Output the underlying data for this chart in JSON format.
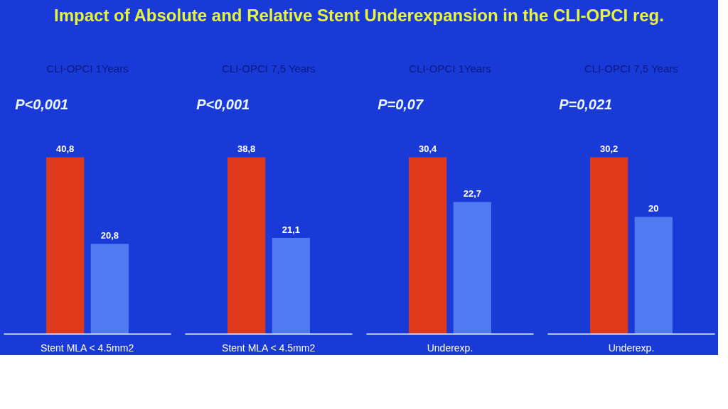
{
  "chart_data": [
    {
      "type": "bar",
      "title": "Impact of Absolute and Relative Stent Underexpansion in the CLI-OPCI reg.",
      "subtitle": "CLI-OPCI 1Years",
      "categories": [
        "Stent MLA < 4.5mm2"
      ],
      "tick_labels": "x",
      "annotations": [
        "P<0,001"
      ],
      "series": [
        {
          "color": "#e03a1c",
          "values": [
            40.8
          ],
          "value_labels": [
            "40,8"
          ]
        },
        {
          "color": "#4f7af0",
          "values": [
            20.8
          ],
          "value_labels": [
            "20,8"
          ]
        }
      ]
    },
    {
      "type": "bar",
      "subtitle": "CLI-OPCI 7,5 Years",
      "categories": [
        "Stent MLA < 4.5mm2"
      ],
      "tick_labels": "x",
      "annotations": [
        "P<0,001"
      ],
      "series": [
        {
          "color": "#e03a1c",
          "values": [
            38.8
          ],
          "value_labels": [
            "38,8"
          ]
        },
        {
          "color": "#4f7af0",
          "values": [
            21.1
          ],
          "value_labels": [
            "21,1"
          ]
        }
      ]
    },
    {
      "type": "bar",
      "subtitle": "CLI-OPCI 1Years",
      "categories": [
        "Underexp."
      ],
      "tick_labels": "x",
      "annotations": [
        "P=0,07"
      ],
      "series": [
        {
          "color": "#e03a1c",
          "values": [
            30.4
          ],
          "value_labels": [
            "30,4"
          ]
        },
        {
          "color": "#4f7af0",
          "values": [
            22.7
          ],
          "value_labels": [
            "22,7"
          ]
        }
      ]
    },
    {
      "type": "bar",
      "subtitle": "CLI-OPCI 7,5 Years",
      "categories": [
        "Underexp."
      ],
      "tick_labels": "x",
      "annotations": [
        "P=0,021"
      ],
      "series": [
        {
          "color": "#e03a1c",
          "values": [
            30.2
          ],
          "value_labels": [
            "30,2"
          ]
        },
        {
          "color": "#4f7af0",
          "values": [
            20
          ],
          "value_labels": [
            "20"
          ]
        }
      ]
    }
  ]
}
